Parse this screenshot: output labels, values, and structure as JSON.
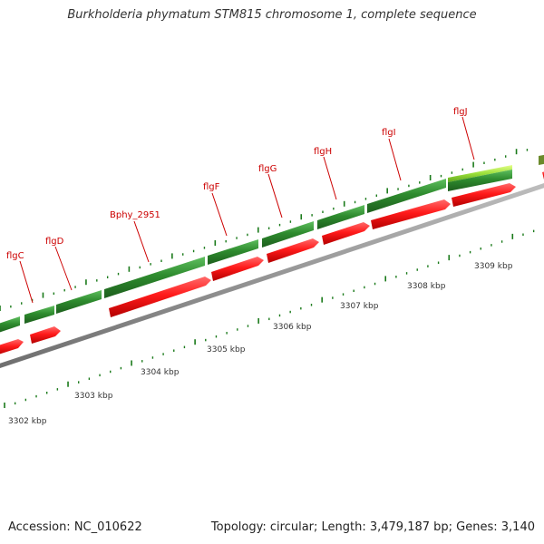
{
  "title": "Burkholderia phymatum STM815 chromosome 1, complete sequence",
  "accession": "Accession: NC_010622",
  "topology": "Topology: circular; Length: 3,479,187 bp; Genes: 3,140",
  "colors": {
    "gene_green": "#2e8b2e",
    "gene_green_highlight": "#9adf3a",
    "cds_red": "#ff1a1a",
    "backbone_gray": "#8c8c8c",
    "tick_green": "#1a7a1a",
    "label_red": "#cc0000"
  },
  "gene_labels": [
    "flgC",
    "flgD",
    "Bphy_2951",
    "flgF",
    "flgG",
    "flgH",
    "flgI",
    "flgJ"
  ],
  "kbp_labels": [
    "3302 kbp",
    "3303 kbp",
    "3304 kbp",
    "3305 kbp",
    "3306 kbp",
    "3307 kbp",
    "3308 kbp",
    "3309 kbp"
  ]
}
